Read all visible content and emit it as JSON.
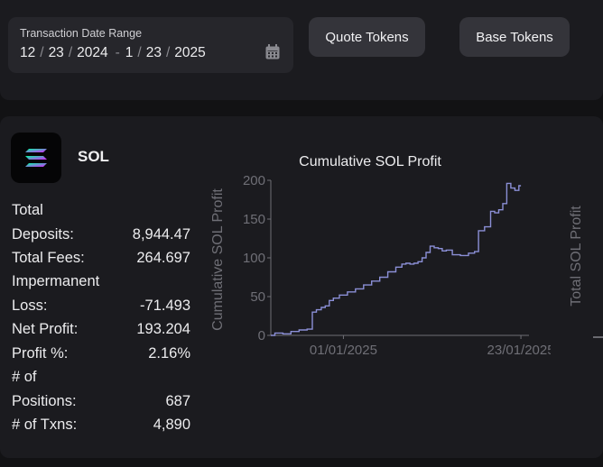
{
  "date_range": {
    "label": "Transaction Date Range",
    "start": {
      "month": "12",
      "day": "23",
      "year": "2024"
    },
    "end": {
      "month": "1",
      "day": "23",
      "year": "2025"
    },
    "sep": "/",
    "range_sep": "-"
  },
  "buttons": {
    "quote": "Quote Tokens",
    "base": "Base Tokens"
  },
  "token": {
    "name": "SOL"
  },
  "stats": {
    "total_label_line1": "Total",
    "total_deposits_label": "Deposits:",
    "total_deposits_value": "8,944.47",
    "total_fees_label": "Total Fees:",
    "total_fees_value": "264.697",
    "impermanent_label_line1": "Impermanent",
    "impermanent_label_line2": "Loss:",
    "impermanent_value": "-71.493",
    "net_profit_label": "Net Profit:",
    "net_profit_value": "193.204",
    "profit_pct_label": "Profit %:",
    "profit_pct_value": "2.16%",
    "positions_label_line1": "# of",
    "positions_label_line2": "Positions:",
    "positions_value": "687",
    "txns_label": "# of Txns:",
    "txns_value": "4,890"
  },
  "chart_data": {
    "type": "line",
    "title": "Cumulative SOL Profit",
    "xlabel": "",
    "ylabel": "Cumulative SOL Profit",
    "secondary_ylabel": "Total SOL Profit",
    "ylim": [
      0,
      200
    ],
    "yticks": [
      0,
      50,
      100,
      150,
      200
    ],
    "xlim": [
      0,
      32
    ],
    "xticks": [
      {
        "label": "01/01/2025",
        "value": 9
      },
      {
        "label": "23/01/2025",
        "value": 31
      }
    ],
    "line_color": "#8b8fd6",
    "series": [
      {
        "name": "Cumulative SOL Profit",
        "x": [
          0,
          1,
          2,
          3,
          4,
          5,
          5.3,
          6,
          6.5,
          7,
          7.5,
          8,
          9,
          10,
          11,
          12,
          13,
          14,
          15,
          16,
          16.5,
          17,
          17.5,
          18,
          18.5,
          19,
          19.5,
          20,
          20.5,
          21,
          21.5,
          22,
          23,
          24,
          25,
          25.5,
          26,
          27,
          27.5,
          28,
          28.5,
          29,
          29.5,
          30,
          30.5,
          31
        ],
        "y": [
          0,
          3,
          2,
          5,
          7,
          8,
          30,
          33,
          36,
          38,
          45,
          48,
          52,
          56,
          60,
          65,
          70,
          75,
          82,
          88,
          92,
          93,
          92,
          93,
          95,
          100,
          107,
          115,
          113,
          112,
          109,
          110,
          104,
          103,
          106,
          108,
          135,
          140,
          160,
          158,
          162,
          170,
          196,
          190,
          187,
          193
        ]
      }
    ]
  }
}
